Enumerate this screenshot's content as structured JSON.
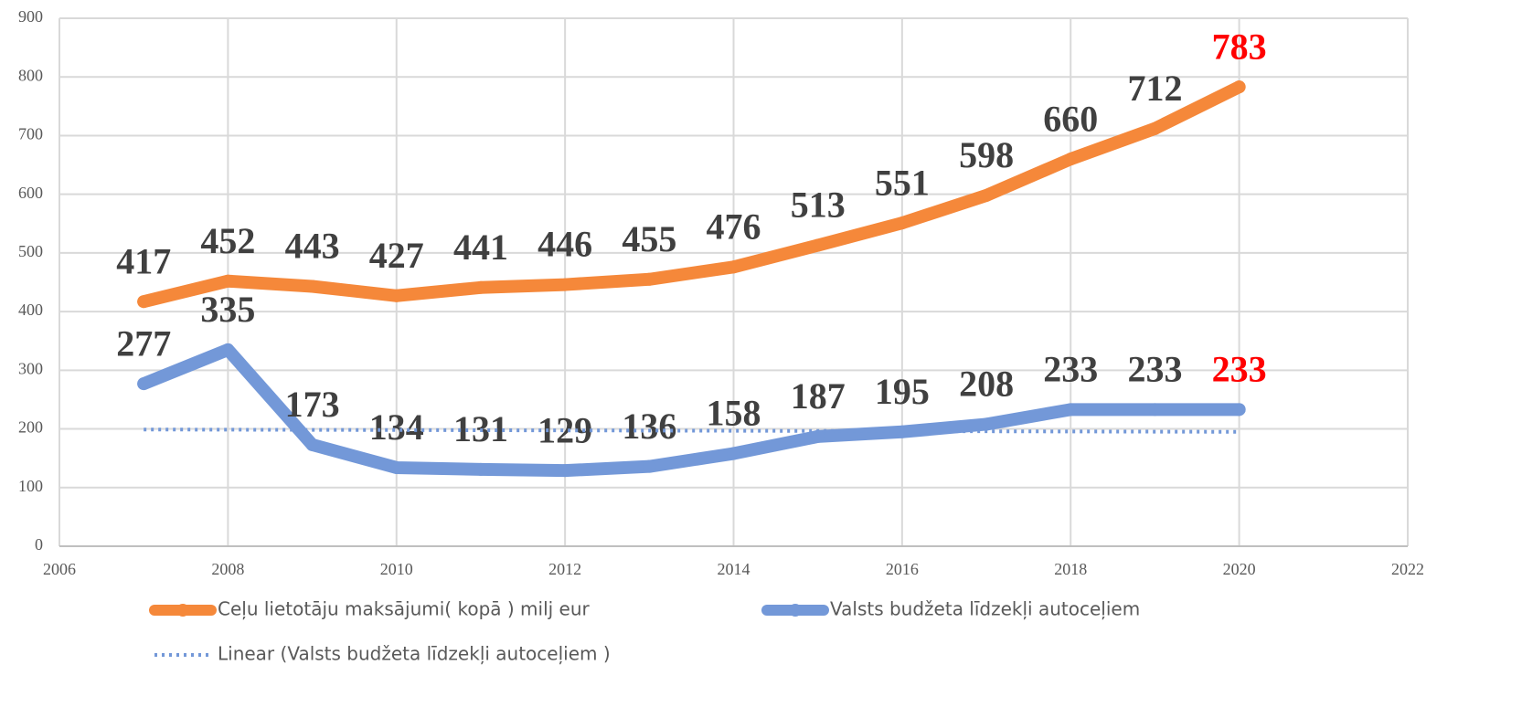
{
  "chart_data": {
    "type": "line",
    "x": [
      2007,
      2008,
      2009,
      2010,
      2011,
      2012,
      2013,
      2014,
      2015,
      2016,
      2017,
      2018,
      2019,
      2020
    ],
    "series": [
      {
        "name": "Ceļu lietotāju maksājumi( kopā ) milj eur",
        "color": "#f5883a",
        "values": [
          417,
          452,
          443,
          427,
          441,
          446,
          455,
          476,
          513,
          551,
          598,
          660,
          712,
          783
        ]
      },
      {
        "name": "Valsts budžeta līdzekļi autoceļiem",
        "color": "#7398d8",
        "values": [
          277,
          335,
          173,
          134,
          131,
          129,
          136,
          158,
          187,
          195,
          208,
          233,
          233,
          233
        ]
      },
      {
        "name": "Linear (Valsts budžeta līdzekļi autoceļiem )",
        "color": "#7398d8",
        "dotted": true,
        "x": [
          2007,
          2020
        ],
        "values": [
          199,
          195
        ]
      }
    ],
    "highlight_last_label_color": "#ff0000",
    "xlim": [
      2006,
      2022
    ],
    "xticks": [
      2006,
      2008,
      2010,
      2012,
      2014,
      2016,
      2018,
      2020,
      2022
    ],
    "ylim": [
      0,
      900
    ],
    "yticks": [
      0,
      100,
      200,
      300,
      400,
      500,
      600,
      700,
      800,
      900
    ],
    "grid": true,
    "legend": "bottom"
  }
}
